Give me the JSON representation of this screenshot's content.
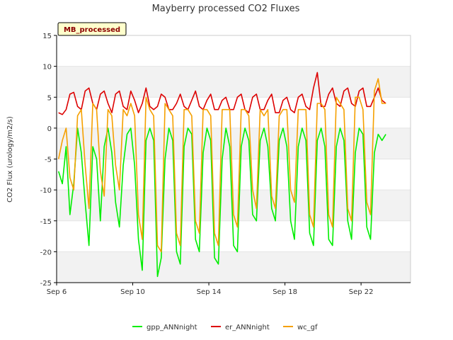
{
  "chart_data": {
    "type": "line",
    "title": "Mayberry processed CO2 Fluxes",
    "ylabel": "CO2 Flux (urology/m2/s)",
    "xlabel": "",
    "tag": "MB_processed",
    "ylim": [
      -25,
      15
    ],
    "yticks": [
      -25,
      -20,
      -15,
      -10,
      -5,
      0,
      5,
      10,
      15
    ],
    "xlim": [
      6.0,
      24.6
    ],
    "xticks": [
      {
        "label": "Sep 6",
        "value": 6
      },
      {
        "label": "Sep 10",
        "value": 10
      },
      {
        "label": "Sep 14",
        "value": 14
      },
      {
        "label": "Sep 18",
        "value": 18
      },
      {
        "label": "Sep 22",
        "value": 22
      }
    ],
    "grid": true,
    "legend_position": "bottom",
    "series": [
      {
        "name": "gpp_ANNnight",
        "color": "#00ee00",
        "x": [
          6.1,
          6.3,
          6.5,
          6.7,
          6.9,
          7.1,
          7.3,
          7.5,
          7.7,
          7.9,
          8.1,
          8.3,
          8.5,
          8.7,
          8.9,
          9.1,
          9.3,
          9.5,
          9.7,
          9.9,
          10.1,
          10.3,
          10.5,
          10.7,
          10.9,
          11.1,
          11.3,
          11.5,
          11.7,
          11.9,
          12.1,
          12.3,
          12.5,
          12.7,
          12.9,
          13.1,
          13.3,
          13.5,
          13.7,
          13.9,
          14.1,
          14.3,
          14.5,
          14.7,
          14.9,
          15.1,
          15.3,
          15.5,
          15.7,
          15.9,
          16.1,
          16.3,
          16.5,
          16.7,
          16.9,
          17.1,
          17.3,
          17.5,
          17.7,
          17.9,
          18.1,
          18.3,
          18.5,
          18.7,
          18.9,
          19.1,
          19.3,
          19.5,
          19.7,
          19.9,
          20.1,
          20.3,
          20.5,
          20.7,
          20.9,
          21.1,
          21.3,
          21.5,
          21.7,
          21.9,
          22.1,
          22.3,
          22.5,
          22.7,
          22.9,
          23.1,
          23.3
        ],
        "y": [
          -7,
          -9,
          -3,
          -14,
          -9,
          0,
          -4,
          -12,
          -19,
          -3,
          -5,
          -15,
          -3,
          0,
          -4,
          -12,
          -16,
          -6,
          -1,
          0,
          -6,
          -18,
          -23,
          -2,
          0,
          -2,
          -24,
          -21,
          -5,
          0,
          -2,
          -20,
          -22,
          -3,
          0,
          -1,
          -18,
          -20,
          -4,
          0,
          -2,
          -21,
          -22,
          -5,
          0,
          -3,
          -19,
          -20,
          -3,
          0,
          -2,
          -14,
          -15,
          -2,
          0,
          -3,
          -13,
          -15,
          -2,
          0,
          -3,
          -15,
          -18,
          -3,
          0,
          -2,
          -17,
          -19,
          -2,
          0,
          -3,
          -18,
          -19,
          -3,
          0,
          -2,
          -15,
          -18,
          -4,
          0,
          -1,
          -16,
          -18,
          -4,
          -1,
          -2,
          -1
        ]
      },
      {
        "name": "er_ANNnight",
        "color": "#dd0000",
        "x": [
          6.1,
          6.3,
          6.5,
          6.7,
          6.9,
          7.1,
          7.3,
          7.5,
          7.7,
          7.9,
          8.1,
          8.3,
          8.5,
          8.7,
          8.9,
          9.1,
          9.3,
          9.5,
          9.7,
          9.9,
          10.1,
          10.3,
          10.5,
          10.7,
          10.9,
          11.1,
          11.3,
          11.5,
          11.7,
          11.9,
          12.1,
          12.3,
          12.5,
          12.7,
          12.9,
          13.1,
          13.3,
          13.5,
          13.7,
          13.9,
          14.1,
          14.3,
          14.5,
          14.7,
          14.9,
          15.1,
          15.3,
          15.5,
          15.7,
          15.9,
          16.1,
          16.3,
          16.5,
          16.7,
          16.9,
          17.1,
          17.3,
          17.5,
          17.7,
          17.9,
          18.1,
          18.3,
          18.5,
          18.7,
          18.9,
          19.1,
          19.3,
          19.5,
          19.7,
          19.9,
          20.1,
          20.3,
          20.5,
          20.7,
          20.9,
          21.1,
          21.3,
          21.5,
          21.7,
          21.9,
          22.1,
          22.3,
          22.5,
          22.7,
          22.9,
          23.1,
          23.3
        ],
        "y": [
          2.5,
          2.2,
          3.0,
          5.5,
          5.8,
          3.5,
          3.0,
          6.0,
          6.5,
          4.0,
          3.0,
          5.5,
          6.0,
          4.0,
          2.5,
          5.5,
          6.0,
          3.5,
          3.0,
          6.0,
          4.5,
          2.5,
          4.0,
          6.5,
          3.5,
          3.0,
          3.5,
          5.5,
          5.0,
          3.0,
          3.0,
          4.0,
          5.5,
          3.5,
          3.0,
          4.5,
          6.0,
          3.5,
          3.0,
          4.5,
          5.5,
          3.0,
          3.0,
          4.5,
          5.0,
          3.0,
          3.0,
          5.0,
          5.5,
          3.0,
          2.5,
          5.0,
          5.5,
          3.0,
          3.0,
          4.5,
          5.5,
          2.5,
          2.5,
          4.5,
          5.0,
          3.0,
          2.5,
          5.0,
          5.5,
          3.5,
          3.0,
          6.5,
          9.0,
          3.5,
          3.5,
          5.5,
          6.5,
          4.0,
          3.5,
          6.0,
          6.5,
          4.0,
          3.5,
          6.0,
          6.5,
          3.5,
          3.5,
          5.0,
          6.5,
          4.5,
          4.0
        ]
      },
      {
        "name": "wc_gf",
        "color": "#f5a000",
        "x": [
          6.1,
          6.3,
          6.5,
          6.7,
          6.9,
          7.1,
          7.3,
          7.5,
          7.7,
          7.9,
          8.1,
          8.3,
          8.5,
          8.7,
          8.9,
          9.1,
          9.3,
          9.5,
          9.7,
          9.9,
          10.1,
          10.3,
          10.5,
          10.7,
          10.9,
          11.1,
          11.3,
          11.5,
          11.7,
          11.9,
          12.1,
          12.3,
          12.5,
          12.7,
          12.9,
          13.1,
          13.3,
          13.5,
          13.7,
          13.9,
          14.1,
          14.3,
          14.5,
          14.7,
          14.9,
          15.1,
          15.3,
          15.5,
          15.7,
          15.9,
          16.1,
          16.3,
          16.5,
          16.7,
          16.9,
          17.1,
          17.3,
          17.5,
          17.7,
          17.9,
          18.1,
          18.3,
          18.5,
          18.7,
          18.9,
          19.1,
          19.3,
          19.5,
          19.7,
          19.9,
          20.1,
          20.3,
          20.5,
          20.7,
          20.9,
          21.1,
          21.3,
          21.5,
          21.7,
          21.9,
          22.1,
          22.3,
          22.5,
          22.7,
          22.9,
          23.1,
          23.3
        ],
        "y": [
          -5,
          -2,
          0,
          -8,
          -10,
          2,
          3,
          -6,
          -13,
          4,
          3,
          -7,
          -11,
          3,
          2,
          -6,
          -10,
          3,
          2,
          4,
          2,
          -14,
          -18,
          5,
          3,
          2,
          -19,
          -20,
          4,
          3,
          2,
          -17,
          -19,
          3,
          3,
          2,
          -15,
          -17,
          3,
          3,
          2,
          -17,
          -19,
          3,
          3,
          3,
          -14,
          -16,
          3,
          3,
          2,
          -10,
          -13,
          3,
          2,
          3,
          -11,
          -13,
          2,
          3,
          3,
          -10,
          -12,
          3,
          3,
          3,
          -14,
          -16,
          4,
          4,
          3,
          -14,
          -16,
          5,
          4,
          3,
          -13,
          -15,
          5,
          5,
          3,
          -12,
          -14,
          6,
          8,
          4,
          4
        ]
      }
    ]
  }
}
